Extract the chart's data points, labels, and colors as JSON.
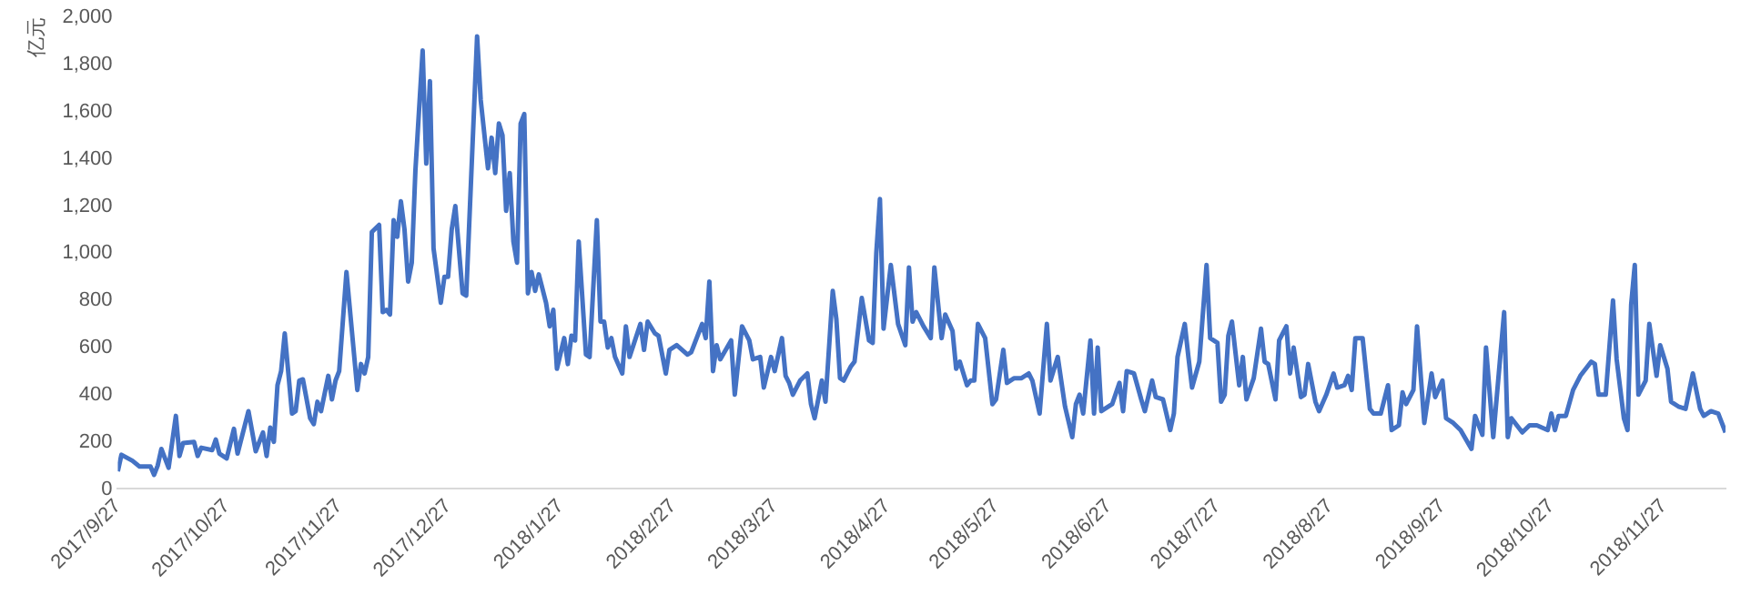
{
  "chart_data": {
    "type": "line",
    "ylabel": "亿元",
    "color": "#4472c4",
    "marker": "none",
    "grid": false,
    "legend": false,
    "x": [
      "2017-09-27",
      "2017-09-28",
      "2017-10-01",
      "2017-10-03",
      "2017-10-06",
      "2017-10-07",
      "2017-10-08",
      "2017-10-09",
      "2017-10-11",
      "2017-10-13",
      "2017-10-14",
      "2017-10-15",
      "2017-10-18",
      "2017-10-19",
      "2017-10-20",
      "2017-10-23",
      "2017-10-24",
      "2017-10-25",
      "2017-10-27",
      "2017-10-29",
      "2017-10-30",
      "2017-11-02",
      "2017-11-04",
      "2017-11-06",
      "2017-11-07",
      "2017-11-08",
      "2017-11-09",
      "2017-11-10",
      "2017-11-11",
      "2017-11-12",
      "2017-11-14",
      "2017-11-15",
      "2017-11-16",
      "2017-11-17",
      "2017-11-19",
      "2017-11-20",
      "2017-11-21",
      "2017-11-22",
      "2017-11-24",
      "2017-11-25",
      "2017-11-26",
      "2017-11-27",
      "2017-11-29",
      "2017-12-02",
      "2017-12-03",
      "2017-12-04",
      "2017-12-05",
      "2017-12-06",
      "2017-12-08",
      "2017-12-09",
      "2017-12-10",
      "2017-12-11",
      "2017-12-12",
      "2017-12-13",
      "2017-12-14",
      "2017-12-15",
      "2017-12-16",
      "2017-12-17",
      "2017-12-18",
      "2017-12-20",
      "2017-12-21",
      "2017-12-22",
      "2017-12-23",
      "2017-12-25",
      "2017-12-26",
      "2017-12-27",
      "2017-12-28",
      "2017-12-29",
      "2017-12-31",
      "2018-01-01",
      "2018-01-04",
      "2018-01-05",
      "2018-01-07",
      "2018-01-08",
      "2018-01-09",
      "2018-01-10",
      "2018-01-11",
      "2018-01-12",
      "2018-01-13",
      "2018-01-14",
      "2018-01-15",
      "2018-01-16",
      "2018-01-17",
      "2018-01-18",
      "2018-01-19",
      "2018-01-20",
      "2018-01-21",
      "2018-01-23",
      "2018-01-24",
      "2018-01-25",
      "2018-01-26",
      "2018-01-28",
      "2018-01-29",
      "2018-01-30",
      "2018-01-31",
      "2018-02-01",
      "2018-02-03",
      "2018-02-04",
      "2018-02-06",
      "2018-02-07",
      "2018-02-08",
      "2018-02-09",
      "2018-02-10",
      "2018-02-11",
      "2018-02-13",
      "2018-02-14",
      "2018-02-15",
      "2018-02-18",
      "2018-02-19",
      "2018-02-20",
      "2018-02-22",
      "2018-02-23",
      "2018-02-25",
      "2018-02-26",
      "2018-02-28",
      "2018-03-03",
      "2018-03-04",
      "2018-03-07",
      "2018-03-08",
      "2018-03-09",
      "2018-03-10",
      "2018-03-11",
      "2018-03-12",
      "2018-03-15",
      "2018-03-16",
      "2018-03-18",
      "2018-03-20",
      "2018-03-21",
      "2018-03-23",
      "2018-03-24",
      "2018-03-26",
      "2018-03-27",
      "2018-03-29",
      "2018-03-30",
      "2018-03-31",
      "2018-04-01",
      "2018-04-03",
      "2018-04-05",
      "2018-04-06",
      "2018-04-07",
      "2018-04-09",
      "2018-04-10",
      "2018-04-12",
      "2018-04-13",
      "2018-04-14",
      "2018-04-15",
      "2018-04-17",
      "2018-04-18",
      "2018-04-20",
      "2018-04-22",
      "2018-04-23",
      "2018-04-24",
      "2018-04-25",
      "2018-04-26",
      "2018-04-28",
      "2018-04-30",
      "2018-05-02",
      "2018-05-03",
      "2018-05-04",
      "2018-05-05",
      "2018-05-07",
      "2018-05-09",
      "2018-05-10",
      "2018-05-12",
      "2018-05-13",
      "2018-05-15",
      "2018-05-16",
      "2018-05-17",
      "2018-05-19",
      "2018-05-20",
      "2018-05-21",
      "2018-05-22",
      "2018-05-24",
      "2018-05-26",
      "2018-05-27",
      "2018-05-29",
      "2018-05-30",
      "2018-06-01",
      "2018-06-03",
      "2018-06-05",
      "2018-06-06",
      "2018-06-08",
      "2018-06-10",
      "2018-06-11",
      "2018-06-13",
      "2018-06-15",
      "2018-06-17",
      "2018-06-18",
      "2018-06-19",
      "2018-06-20",
      "2018-06-22",
      "2018-06-23",
      "2018-06-24",
      "2018-06-25",
      "2018-06-28",
      "2018-06-30",
      "2018-07-01",
      "2018-07-02",
      "2018-07-04",
      "2018-07-06",
      "2018-07-07",
      "2018-07-09",
      "2018-07-10",
      "2018-07-12",
      "2018-07-14",
      "2018-07-15",
      "2018-07-16",
      "2018-07-18",
      "2018-07-19",
      "2018-07-20",
      "2018-07-22",
      "2018-07-24",
      "2018-07-25",
      "2018-07-27",
      "2018-07-28",
      "2018-07-29",
      "2018-07-30",
      "2018-07-31",
      "2018-08-02",
      "2018-08-03",
      "2018-08-04",
      "2018-08-06",
      "2018-08-08",
      "2018-08-09",
      "2018-08-10",
      "2018-08-12",
      "2018-08-13",
      "2018-08-15",
      "2018-08-16",
      "2018-08-17",
      "2018-08-19",
      "2018-08-20",
      "2018-08-21",
      "2018-08-23",
      "2018-08-24",
      "2018-08-26",
      "2018-08-28",
      "2018-08-29",
      "2018-08-31",
      "2018-09-01",
      "2018-09-02",
      "2018-09-03",
      "2018-09-05",
      "2018-09-07",
      "2018-09-08",
      "2018-09-10",
      "2018-09-12",
      "2018-09-13",
      "2018-09-15",
      "2018-09-16",
      "2018-09-17",
      "2018-09-19",
      "2018-09-20",
      "2018-09-22",
      "2018-09-24",
      "2018-09-25",
      "2018-09-27",
      "2018-09-28",
      "2018-09-30",
      "2018-10-02",
      "2018-10-05",
      "2018-10-06",
      "2018-10-08",
      "2018-10-09",
      "2018-10-11",
      "2018-10-14",
      "2018-10-15",
      "2018-10-16",
      "2018-10-19",
      "2018-10-21",
      "2018-10-23",
      "2018-10-26",
      "2018-10-27",
      "2018-10-28",
      "2018-10-29",
      "2018-10-31",
      "2018-11-02",
      "2018-11-04",
      "2018-11-07",
      "2018-11-08",
      "2018-11-09",
      "2018-11-11",
      "2018-11-13",
      "2018-11-14",
      "2018-11-16",
      "2018-11-17",
      "2018-11-18",
      "2018-11-19",
      "2018-11-20",
      "2018-11-22",
      "2018-11-23",
      "2018-11-25",
      "2018-11-26",
      "2018-11-28",
      "2018-11-29",
      "2018-12-01",
      "2018-12-03",
      "2018-12-05",
      "2018-12-07",
      "2018-12-08",
      "2018-12-10",
      "2018-12-12",
      "2018-12-14"
    ],
    "values": [
      75,
      145,
      120,
      95,
      95,
      60,
      100,
      170,
      90,
      310,
      140,
      195,
      200,
      140,
      175,
      165,
      210,
      150,
      130,
      255,
      150,
      330,
      160,
      240,
      140,
      260,
      200,
      440,
      500,
      660,
      320,
      330,
      460,
      465,
      300,
      275,
      370,
      330,
      480,
      380,
      460,
      500,
      920,
      420,
      530,
      490,
      560,
      1090,
      1120,
      750,
      760,
      740,
      1140,
      1070,
      1220,
      1100,
      880,
      960,
      1350,
      1860,
      1380,
      1730,
      1020,
      790,
      900,
      900,
      1100,
      1200,
      830,
      820,
      1920,
      1650,
      1360,
      1490,
      1340,
      1550,
      1500,
      1180,
      1340,
      1050,
      960,
      1550,
      1590,
      830,
      920,
      840,
      910,
      790,
      690,
      760,
      510,
      640,
      530,
      650,
      630,
      1050,
      570,
      560,
      1140,
      710,
      710,
      600,
      640,
      560,
      490,
      690,
      560,
      700,
      590,
      710,
      660,
      650,
      490,
      590,
      610,
      570,
      580,
      700,
      640,
      880,
      500,
      610,
      550,
      630,
      400,
      690,
      630,
      550,
      560,
      430,
      560,
      500,
      640,
      480,
      450,
      400,
      460,
      490,
      360,
      300,
      460,
      370,
      840,
      720,
      470,
      460,
      520,
      540,
      810,
      630,
      620,
      1000,
      1230,
      680,
      950,
      700,
      610,
      940,
      710,
      750,
      690,
      640,
      940,
      640,
      740,
      670,
      510,
      540,
      440,
      460,
      460,
      700,
      640,
      360,
      380,
      590,
      450,
      470,
      470,
      490,
      460,
      320,
      700,
      460,
      560,
      350,
      220,
      360,
      400,
      320,
      630,
      320,
      600,
      330,
      360,
      450,
      330,
      500,
      490,
      380,
      330,
      460,
      390,
      380,
      250,
      320,
      560,
      700,
      560,
      430,
      540,
      950,
      640,
      620,
      370,
      400,
      650,
      710,
      440,
      560,
      380,
      470,
      680,
      540,
      530,
      380,
      630,
      690,
      490,
      600,
      390,
      400,
      530,
      370,
      330,
      400,
      490,
      430,
      440,
      480,
      420,
      640,
      640,
      340,
      320,
      320,
      440,
      250,
      270,
      410,
      360,
      420,
      690,
      280,
      490,
      390,
      460,
      300,
      280,
      250,
      170,
      310,
      230,
      600,
      220,
      750,
      220,
      300,
      240,
      270,
      270,
      250,
      320,
      250,
      310,
      310,
      420,
      480,
      540,
      530,
      400,
      400,
      800,
      550,
      300,
      250,
      780,
      950,
      400,
      460,
      700,
      480,
      610,
      510,
      370,
      350,
      340,
      490,
      340,
      310,
      330,
      320,
      240
    ],
    "xlim": [
      "2017-09-27",
      "2018-12-14"
    ],
    "xticks": [
      {
        "value": "2017-09-27",
        "label": "2017/9/27"
      },
      {
        "value": "2017-10-27",
        "label": "2017/10/27"
      },
      {
        "value": "2017-11-27",
        "label": "2017/11/27"
      },
      {
        "value": "2017-12-27",
        "label": "2017/12/27"
      },
      {
        "value": "2018-01-27",
        "label": "2018/1/27"
      },
      {
        "value": "2018-02-27",
        "label": "2018/2/27"
      },
      {
        "value": "2018-03-27",
        "label": "2018/3/27"
      },
      {
        "value": "2018-04-27",
        "label": "2018/4/27"
      },
      {
        "value": "2018-05-27",
        "label": "2018/5/27"
      },
      {
        "value": "2018-06-27",
        "label": "2018/6/27"
      },
      {
        "value": "2018-07-27",
        "label": "2018/7/27"
      },
      {
        "value": "2018-08-27",
        "label": "2018/8/27"
      },
      {
        "value": "2018-09-27",
        "label": "2018/9/27"
      },
      {
        "value": "2018-10-27",
        "label": "2018/10/27"
      },
      {
        "value": "2018-11-27",
        "label": "2018/11/27"
      }
    ],
    "ylim": [
      0,
      2000
    ],
    "yticks": [
      0,
      200,
      400,
      600,
      800,
      {
        "value": 1000,
        "label": "1,000"
      },
      {
        "value": 1200,
        "label": "1,200"
      },
      {
        "value": 1400,
        "label": "1,400"
      },
      {
        "value": 1600,
        "label": "1,600"
      },
      {
        "value": 1800,
        "label": "1,800"
      },
      {
        "value": 2000,
        "label": "2,000"
      }
    ]
  }
}
